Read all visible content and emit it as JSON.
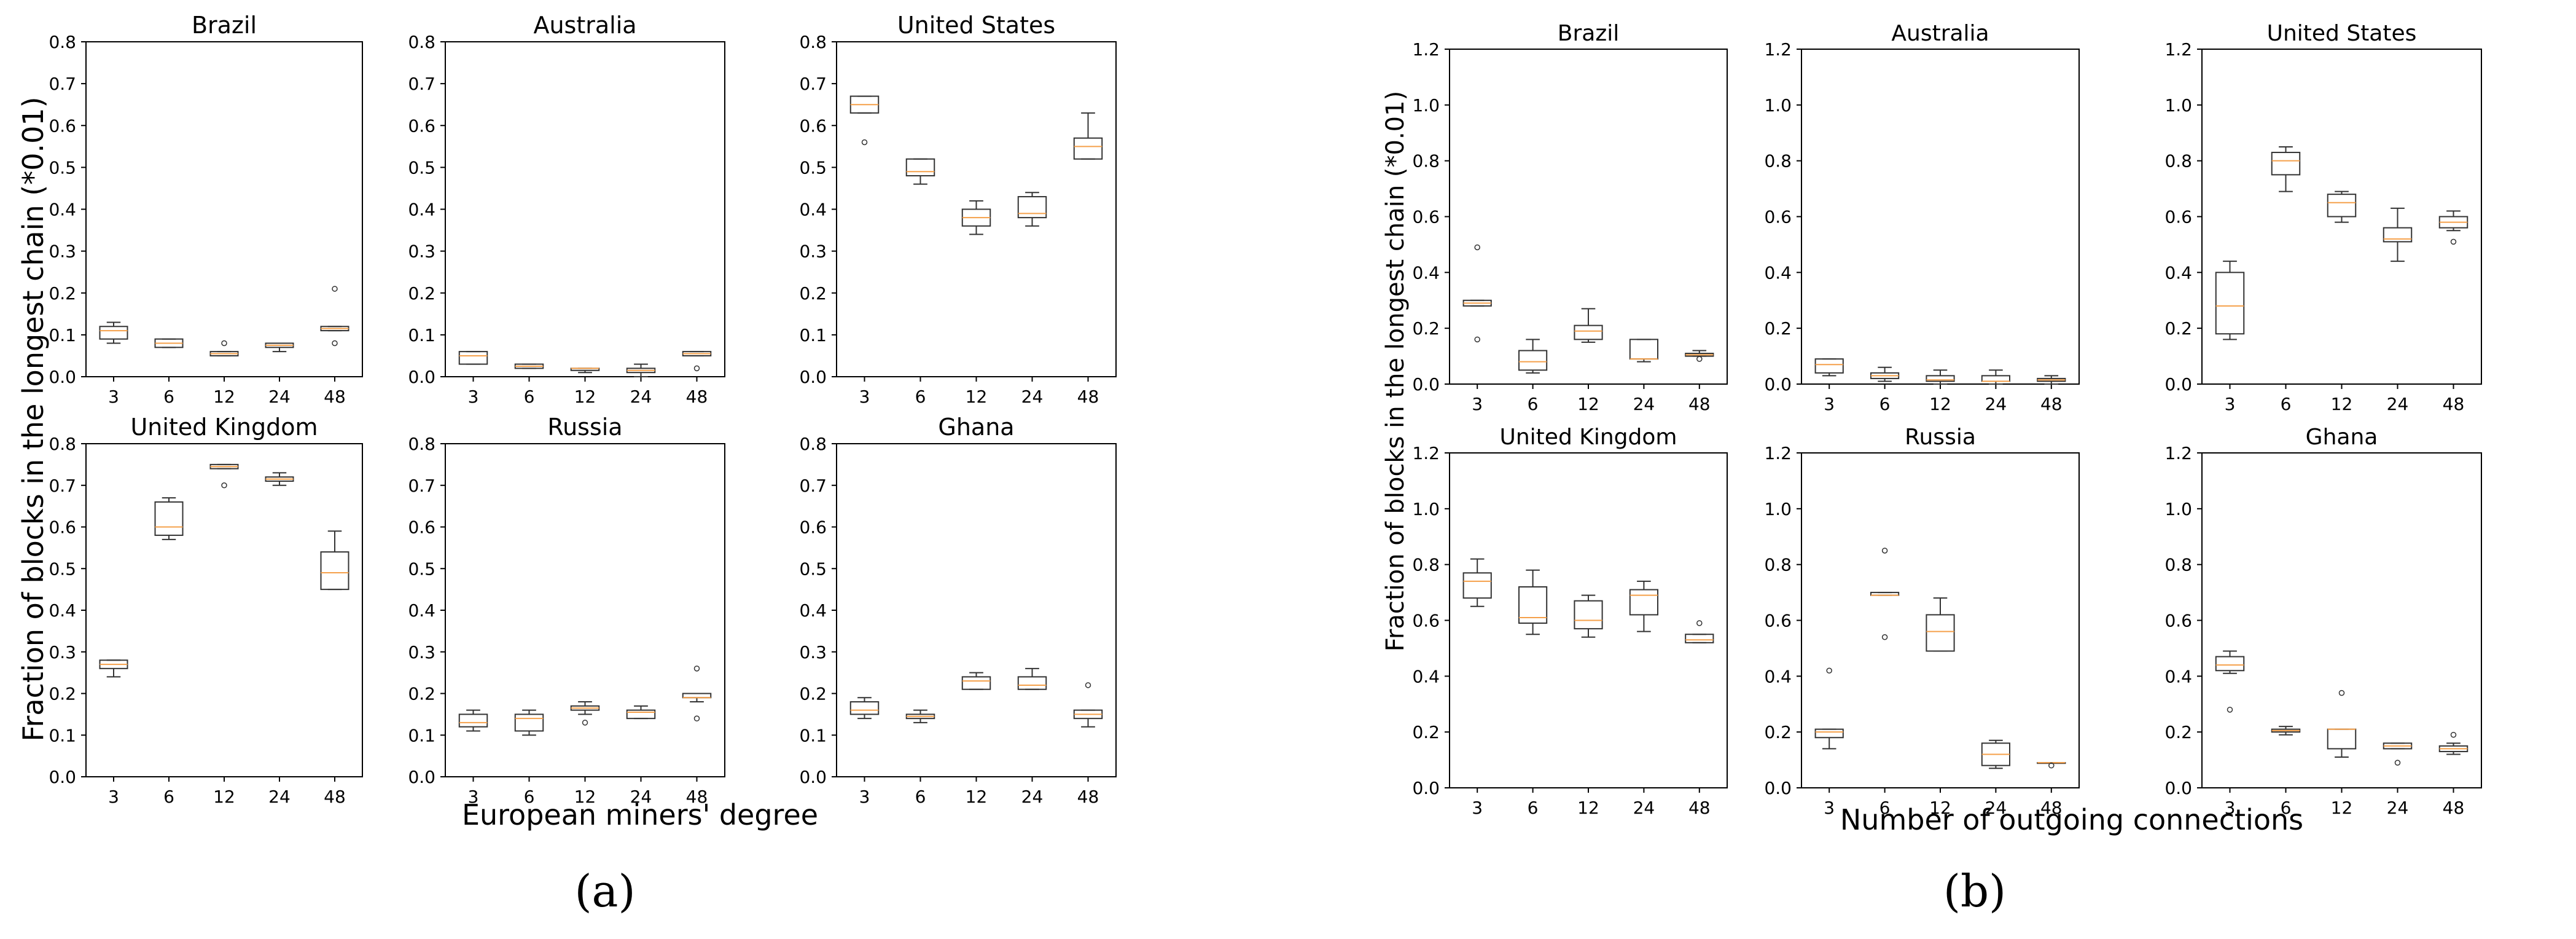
{
  "figure": {
    "caption_a": "(a)",
    "caption_b": "(b)",
    "xlabel_a": "European miners' degree",
    "xlabel_b": "Number of outgoing connections",
    "ylabel_a": "Fraction of blocks in the longest chain (*0.01)",
    "ylabel_b": "Fraction of blocks in the longest chain (*0.01)"
  },
  "colors": {
    "box": "#333333",
    "median": "#f5a04a",
    "frame": "#000000"
  },
  "chart_data": [
    {
      "group": "a",
      "type": "box",
      "title": "Brazil",
      "categories": [
        "3",
        "6",
        "12",
        "24",
        "48"
      ],
      "ylim": [
        0,
        0.8
      ],
      "yticks": [
        "0.0",
        "0.1",
        "0.2",
        "0.3",
        "0.4",
        "0.5",
        "0.6",
        "0.7",
        "0.8"
      ],
      "boxes": [
        {
          "min": 0.08,
          "q1": 0.09,
          "median": 0.11,
          "q3": 0.12,
          "max": 0.13,
          "outliers": []
        },
        {
          "min": 0.07,
          "q1": 0.07,
          "median": 0.08,
          "q3": 0.09,
          "max": 0.09,
          "outliers": []
        },
        {
          "min": 0.05,
          "q1": 0.05,
          "median": 0.055,
          "q3": 0.06,
          "max": 0.06,
          "outliers": [
            0.08
          ]
        },
        {
          "min": 0.06,
          "q1": 0.07,
          "median": 0.075,
          "q3": 0.08,
          "max": 0.08,
          "outliers": []
        },
        {
          "min": 0.11,
          "q1": 0.11,
          "median": 0.115,
          "q3": 0.12,
          "max": 0.12,
          "outliers": [
            0.21,
            0.08
          ]
        }
      ]
    },
    {
      "group": "a",
      "type": "box",
      "title": "Australia",
      "categories": [
        "3",
        "6",
        "12",
        "24",
        "48"
      ],
      "ylim": [
        0,
        0.8
      ],
      "yticks": [
        "0.0",
        "0.1",
        "0.2",
        "0.3",
        "0.4",
        "0.5",
        "0.6",
        "0.7",
        "0.8"
      ],
      "boxes": [
        {
          "min": 0.03,
          "q1": 0.03,
          "median": 0.05,
          "q3": 0.06,
          "max": 0.06,
          "outliers": []
        },
        {
          "min": 0.02,
          "q1": 0.02,
          "median": 0.025,
          "q3": 0.03,
          "max": 0.03,
          "outliers": []
        },
        {
          "min": 0.01,
          "q1": 0.015,
          "median": 0.02,
          "q3": 0.02,
          "max": 0.02,
          "outliers": []
        },
        {
          "min": 0.0,
          "q1": 0.01,
          "median": 0.015,
          "q3": 0.02,
          "max": 0.03,
          "outliers": []
        },
        {
          "min": 0.05,
          "q1": 0.05,
          "median": 0.055,
          "q3": 0.06,
          "max": 0.06,
          "outliers": [
            0.02
          ]
        }
      ]
    },
    {
      "group": "a",
      "type": "box",
      "title": "United States",
      "categories": [
        "3",
        "6",
        "12",
        "24",
        "48"
      ],
      "ylim": [
        0,
        0.8
      ],
      "yticks": [
        "0.0",
        "0.1",
        "0.2",
        "0.3",
        "0.4",
        "0.5",
        "0.6",
        "0.7",
        "0.8"
      ],
      "boxes": [
        {
          "min": 0.63,
          "q1": 0.63,
          "median": 0.65,
          "q3": 0.67,
          "max": 0.67,
          "outliers": [
            0.56
          ]
        },
        {
          "min": 0.46,
          "q1": 0.48,
          "median": 0.49,
          "q3": 0.52,
          "max": 0.52,
          "outliers": []
        },
        {
          "min": 0.34,
          "q1": 0.36,
          "median": 0.38,
          "q3": 0.4,
          "max": 0.42,
          "outliers": []
        },
        {
          "min": 0.36,
          "q1": 0.38,
          "median": 0.39,
          "q3": 0.43,
          "max": 0.44,
          "outliers": []
        },
        {
          "min": 0.52,
          "q1": 0.52,
          "median": 0.55,
          "q3": 0.57,
          "max": 0.63,
          "outliers": []
        }
      ]
    },
    {
      "group": "a",
      "type": "box",
      "title": "United Kingdom",
      "categories": [
        "3",
        "6",
        "12",
        "24",
        "48"
      ],
      "ylim": [
        0,
        0.8
      ],
      "yticks": [
        "0.0",
        "0.1",
        "0.2",
        "0.3",
        "0.4",
        "0.5",
        "0.6",
        "0.7",
        "0.8"
      ],
      "boxes": [
        {
          "min": 0.24,
          "q1": 0.26,
          "median": 0.27,
          "q3": 0.28,
          "max": 0.28,
          "outliers": []
        },
        {
          "min": 0.57,
          "q1": 0.58,
          "median": 0.6,
          "q3": 0.66,
          "max": 0.67,
          "outliers": []
        },
        {
          "min": 0.74,
          "q1": 0.74,
          "median": 0.745,
          "q3": 0.75,
          "max": 0.75,
          "outliers": [
            0.7
          ]
        },
        {
          "min": 0.7,
          "q1": 0.71,
          "median": 0.715,
          "q3": 0.72,
          "max": 0.73,
          "outliers": []
        },
        {
          "min": 0.45,
          "q1": 0.45,
          "median": 0.49,
          "q3": 0.54,
          "max": 0.59,
          "outliers": []
        }
      ]
    },
    {
      "group": "a",
      "type": "box",
      "title": "Russia",
      "categories": [
        "3",
        "6",
        "12",
        "24",
        "48"
      ],
      "ylim": [
        0,
        0.8
      ],
      "yticks": [
        "0.0",
        "0.1",
        "0.2",
        "0.3",
        "0.4",
        "0.5",
        "0.6",
        "0.7",
        "0.8"
      ],
      "boxes": [
        {
          "min": 0.11,
          "q1": 0.12,
          "median": 0.13,
          "q3": 0.15,
          "max": 0.16,
          "outliers": []
        },
        {
          "min": 0.1,
          "q1": 0.11,
          "median": 0.14,
          "q3": 0.15,
          "max": 0.16,
          "outliers": []
        },
        {
          "min": 0.15,
          "q1": 0.16,
          "median": 0.165,
          "q3": 0.17,
          "max": 0.18,
          "outliers": [
            0.13
          ]
        },
        {
          "min": 0.14,
          "q1": 0.14,
          "median": 0.155,
          "q3": 0.16,
          "max": 0.17,
          "outliers": []
        },
        {
          "min": 0.18,
          "q1": 0.19,
          "median": 0.19,
          "q3": 0.2,
          "max": 0.2,
          "outliers": [
            0.26,
            0.14
          ]
        }
      ]
    },
    {
      "group": "a",
      "type": "box",
      "title": "Ghana",
      "categories": [
        "3",
        "6",
        "12",
        "24",
        "48"
      ],
      "ylim": [
        0,
        0.8
      ],
      "yticks": [
        "0.0",
        "0.1",
        "0.2",
        "0.3",
        "0.4",
        "0.5",
        "0.6",
        "0.7",
        "0.8"
      ],
      "boxes": [
        {
          "min": 0.14,
          "q1": 0.15,
          "median": 0.16,
          "q3": 0.18,
          "max": 0.19,
          "outliers": []
        },
        {
          "min": 0.13,
          "q1": 0.14,
          "median": 0.145,
          "q3": 0.15,
          "max": 0.16,
          "outliers": []
        },
        {
          "min": 0.21,
          "q1": 0.21,
          "median": 0.23,
          "q3": 0.24,
          "max": 0.25,
          "outliers": []
        },
        {
          "min": 0.21,
          "q1": 0.21,
          "median": 0.22,
          "q3": 0.24,
          "max": 0.26,
          "outliers": []
        },
        {
          "min": 0.12,
          "q1": 0.14,
          "median": 0.15,
          "q3": 0.16,
          "max": 0.16,
          "outliers": [
            0.22
          ]
        }
      ]
    },
    {
      "group": "b",
      "type": "box",
      "title": "Brazil",
      "categories": [
        "3",
        "6",
        "12",
        "24",
        "48"
      ],
      "ylim": [
        0,
        1.2
      ],
      "yticks": [
        "0.0",
        "0.2",
        "0.4",
        "0.6",
        "0.8",
        "1.0",
        "1.2"
      ],
      "boxes": [
        {
          "min": 0.28,
          "q1": 0.28,
          "median": 0.29,
          "q3": 0.3,
          "max": 0.3,
          "outliers": [
            0.49,
            0.16
          ]
        },
        {
          "min": 0.04,
          "q1": 0.05,
          "median": 0.08,
          "q3": 0.12,
          "max": 0.16,
          "outliers": []
        },
        {
          "min": 0.15,
          "q1": 0.16,
          "median": 0.19,
          "q3": 0.21,
          "max": 0.27,
          "outliers": []
        },
        {
          "min": 0.08,
          "q1": 0.09,
          "median": 0.09,
          "q3": 0.16,
          "max": 0.16,
          "outliers": []
        },
        {
          "min": 0.1,
          "q1": 0.1,
          "median": 0.105,
          "q3": 0.11,
          "max": 0.12,
          "outliers": [
            0.09
          ]
        }
      ]
    },
    {
      "group": "b",
      "type": "box",
      "title": "Australia",
      "categories": [
        "3",
        "6",
        "12",
        "24",
        "48"
      ],
      "ylim": [
        0,
        1.2
      ],
      "yticks": [
        "0.0",
        "0.2",
        "0.4",
        "0.6",
        "0.8",
        "1.0",
        "1.2"
      ],
      "boxes": [
        {
          "min": 0.03,
          "q1": 0.04,
          "median": 0.07,
          "q3": 0.09,
          "max": 0.09,
          "outliers": []
        },
        {
          "min": 0.01,
          "q1": 0.02,
          "median": 0.03,
          "q3": 0.04,
          "max": 0.06,
          "outliers": []
        },
        {
          "min": 0.0,
          "q1": 0.01,
          "median": 0.015,
          "q3": 0.03,
          "max": 0.05,
          "outliers": []
        },
        {
          "min": 0.0,
          "q1": 0.01,
          "median": 0.01,
          "q3": 0.03,
          "max": 0.05,
          "outliers": []
        },
        {
          "min": 0.0,
          "q1": 0.01,
          "median": 0.015,
          "q3": 0.02,
          "max": 0.03,
          "outliers": []
        }
      ]
    },
    {
      "group": "b",
      "type": "box",
      "title": "United States",
      "categories": [
        "3",
        "6",
        "12",
        "24",
        "48"
      ],
      "ylim": [
        0,
        1.2
      ],
      "yticks": [
        "0.0",
        "0.2",
        "0.4",
        "0.6",
        "0.8",
        "1.0",
        "1.2"
      ],
      "boxes": [
        {
          "min": 0.16,
          "q1": 0.18,
          "median": 0.28,
          "q3": 0.4,
          "max": 0.44,
          "outliers": []
        },
        {
          "min": 0.69,
          "q1": 0.75,
          "median": 0.8,
          "q3": 0.83,
          "max": 0.85,
          "outliers": []
        },
        {
          "min": 0.58,
          "q1": 0.6,
          "median": 0.65,
          "q3": 0.68,
          "max": 0.69,
          "outliers": []
        },
        {
          "min": 0.44,
          "q1": 0.51,
          "median": 0.52,
          "q3": 0.56,
          "max": 0.63,
          "outliers": []
        },
        {
          "min": 0.55,
          "q1": 0.56,
          "median": 0.58,
          "q3": 0.6,
          "max": 0.62,
          "outliers": [
            0.51
          ]
        }
      ]
    },
    {
      "group": "b",
      "type": "box",
      "title": "United Kingdom",
      "categories": [
        "3",
        "6",
        "12",
        "24",
        "48"
      ],
      "ylim": [
        0,
        1.2
      ],
      "yticks": [
        "0.0",
        "0.2",
        "0.4",
        "0.6",
        "0.8",
        "1.0",
        "1.2"
      ],
      "boxes": [
        {
          "min": 0.65,
          "q1": 0.68,
          "median": 0.74,
          "q3": 0.77,
          "max": 0.82,
          "outliers": []
        },
        {
          "min": 0.55,
          "q1": 0.59,
          "median": 0.61,
          "q3": 0.72,
          "max": 0.78,
          "outliers": []
        },
        {
          "min": 0.54,
          "q1": 0.57,
          "median": 0.6,
          "q3": 0.67,
          "max": 0.69,
          "outliers": []
        },
        {
          "min": 0.56,
          "q1": 0.62,
          "median": 0.69,
          "q3": 0.71,
          "max": 0.74,
          "outliers": []
        },
        {
          "min": 0.52,
          "q1": 0.52,
          "median": 0.53,
          "q3": 0.55,
          "max": 0.55,
          "outliers": [
            0.59
          ]
        }
      ]
    },
    {
      "group": "b",
      "type": "box",
      "title": "Russia",
      "categories": [
        "3",
        "6",
        "12",
        "24",
        "48"
      ],
      "ylim": [
        0,
        1.2
      ],
      "yticks": [
        "0.0",
        "0.2",
        "0.4",
        "0.6",
        "0.8",
        "1.0",
        "1.2"
      ],
      "boxes": [
        {
          "min": 0.14,
          "q1": 0.18,
          "median": 0.2,
          "q3": 0.21,
          "max": 0.21,
          "outliers": [
            0.42
          ]
        },
        {
          "min": 0.69,
          "q1": 0.69,
          "median": 0.69,
          "q3": 0.7,
          "max": 0.7,
          "outliers": [
            0.85,
            0.54
          ]
        },
        {
          "min": 0.49,
          "q1": 0.49,
          "median": 0.56,
          "q3": 0.62,
          "max": 0.68,
          "outliers": []
        },
        {
          "min": 0.07,
          "q1": 0.08,
          "median": 0.12,
          "q3": 0.16,
          "max": 0.17,
          "outliers": []
        },
        {
          "min": 0.09,
          "q1": 0.09,
          "median": 0.09,
          "q3": 0.09,
          "max": 0.09,
          "outliers": [
            0.08
          ]
        }
      ]
    },
    {
      "group": "b",
      "type": "box",
      "title": "Ghana",
      "categories": [
        "3",
        "6",
        "12",
        "24",
        "48"
      ],
      "ylim": [
        0,
        1.2
      ],
      "yticks": [
        "0.0",
        "0.2",
        "0.4",
        "0.6",
        "0.8",
        "1.0",
        "1.2"
      ],
      "boxes": [
        {
          "min": 0.41,
          "q1": 0.42,
          "median": 0.44,
          "q3": 0.47,
          "max": 0.49,
          "outliers": [
            0.28
          ]
        },
        {
          "min": 0.19,
          "q1": 0.2,
          "median": 0.205,
          "q3": 0.21,
          "max": 0.22,
          "outliers": []
        },
        {
          "min": 0.11,
          "q1": 0.14,
          "median": 0.21,
          "q3": 0.21,
          "max": 0.21,
          "outliers": [
            0.34
          ]
        },
        {
          "min": 0.14,
          "q1": 0.14,
          "median": 0.15,
          "q3": 0.16,
          "max": 0.16,
          "outliers": [
            0.09
          ]
        },
        {
          "min": 0.12,
          "q1": 0.13,
          "median": 0.14,
          "q3": 0.15,
          "max": 0.16,
          "outliers": [
            0.19
          ]
        }
      ]
    }
  ]
}
